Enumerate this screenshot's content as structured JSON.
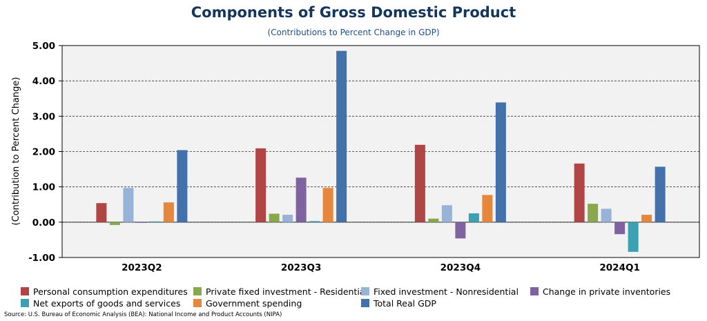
{
  "chart_data": {
    "type": "bar",
    "title": "Components of Gross Domestic Product",
    "subtitle": "(Contributions to Percent Change in GDP)",
    "ylabel": "(Contribution to Percent Change)",
    "xlabel": "",
    "ylim": [
      -1,
      5
    ],
    "yticks": [
      -1,
      0,
      1,
      2,
      3,
      4,
      5
    ],
    "ytick_labels": [
      "-1.00",
      "0.00",
      "1.00",
      "2.00",
      "3.00",
      "4.00",
      "5.00"
    ],
    "grid": true,
    "legend_position": "bottom",
    "categories": [
      "2023Q2",
      "2023Q3",
      "2023Q4",
      "2024Q1"
    ],
    "series": [
      {
        "name": "Personal consumption expenditures",
        "color": "#b14545",
        "values": [
          0.54,
          2.09,
          2.19,
          1.66
        ]
      },
      {
        "name": "Private fixed investment - Residential",
        "color": "#87a84b",
        "values": [
          -0.08,
          0.24,
          0.1,
          0.52
        ]
      },
      {
        "name": "Fixed investment - Nonresidential",
        "color": "#98b2d8",
        "values": [
          0.97,
          0.21,
          0.48,
          0.38
        ]
      },
      {
        "name": "Change in private inventories",
        "color": "#7f62a0",
        "values": [
          -0.01,
          1.26,
          -0.46,
          -0.34
        ]
      },
      {
        "name": "Net exports of goods and services",
        "color": "#3ba1b3",
        "values": [
          0.02,
          0.03,
          0.25,
          -0.84
        ]
      },
      {
        "name": "Government spending",
        "color": "#e5883d",
        "values": [
          0.56,
          0.97,
          0.77,
          0.21
        ]
      },
      {
        "name": "Total Real GDP",
        "color": "#4271ab",
        "values": [
          2.04,
          4.85,
          3.39,
          1.57
        ]
      }
    ]
  },
  "source": "Source: U.S. Bureau of Economic Analysis (BEA): National Income and Product Accounts (NIPA)"
}
